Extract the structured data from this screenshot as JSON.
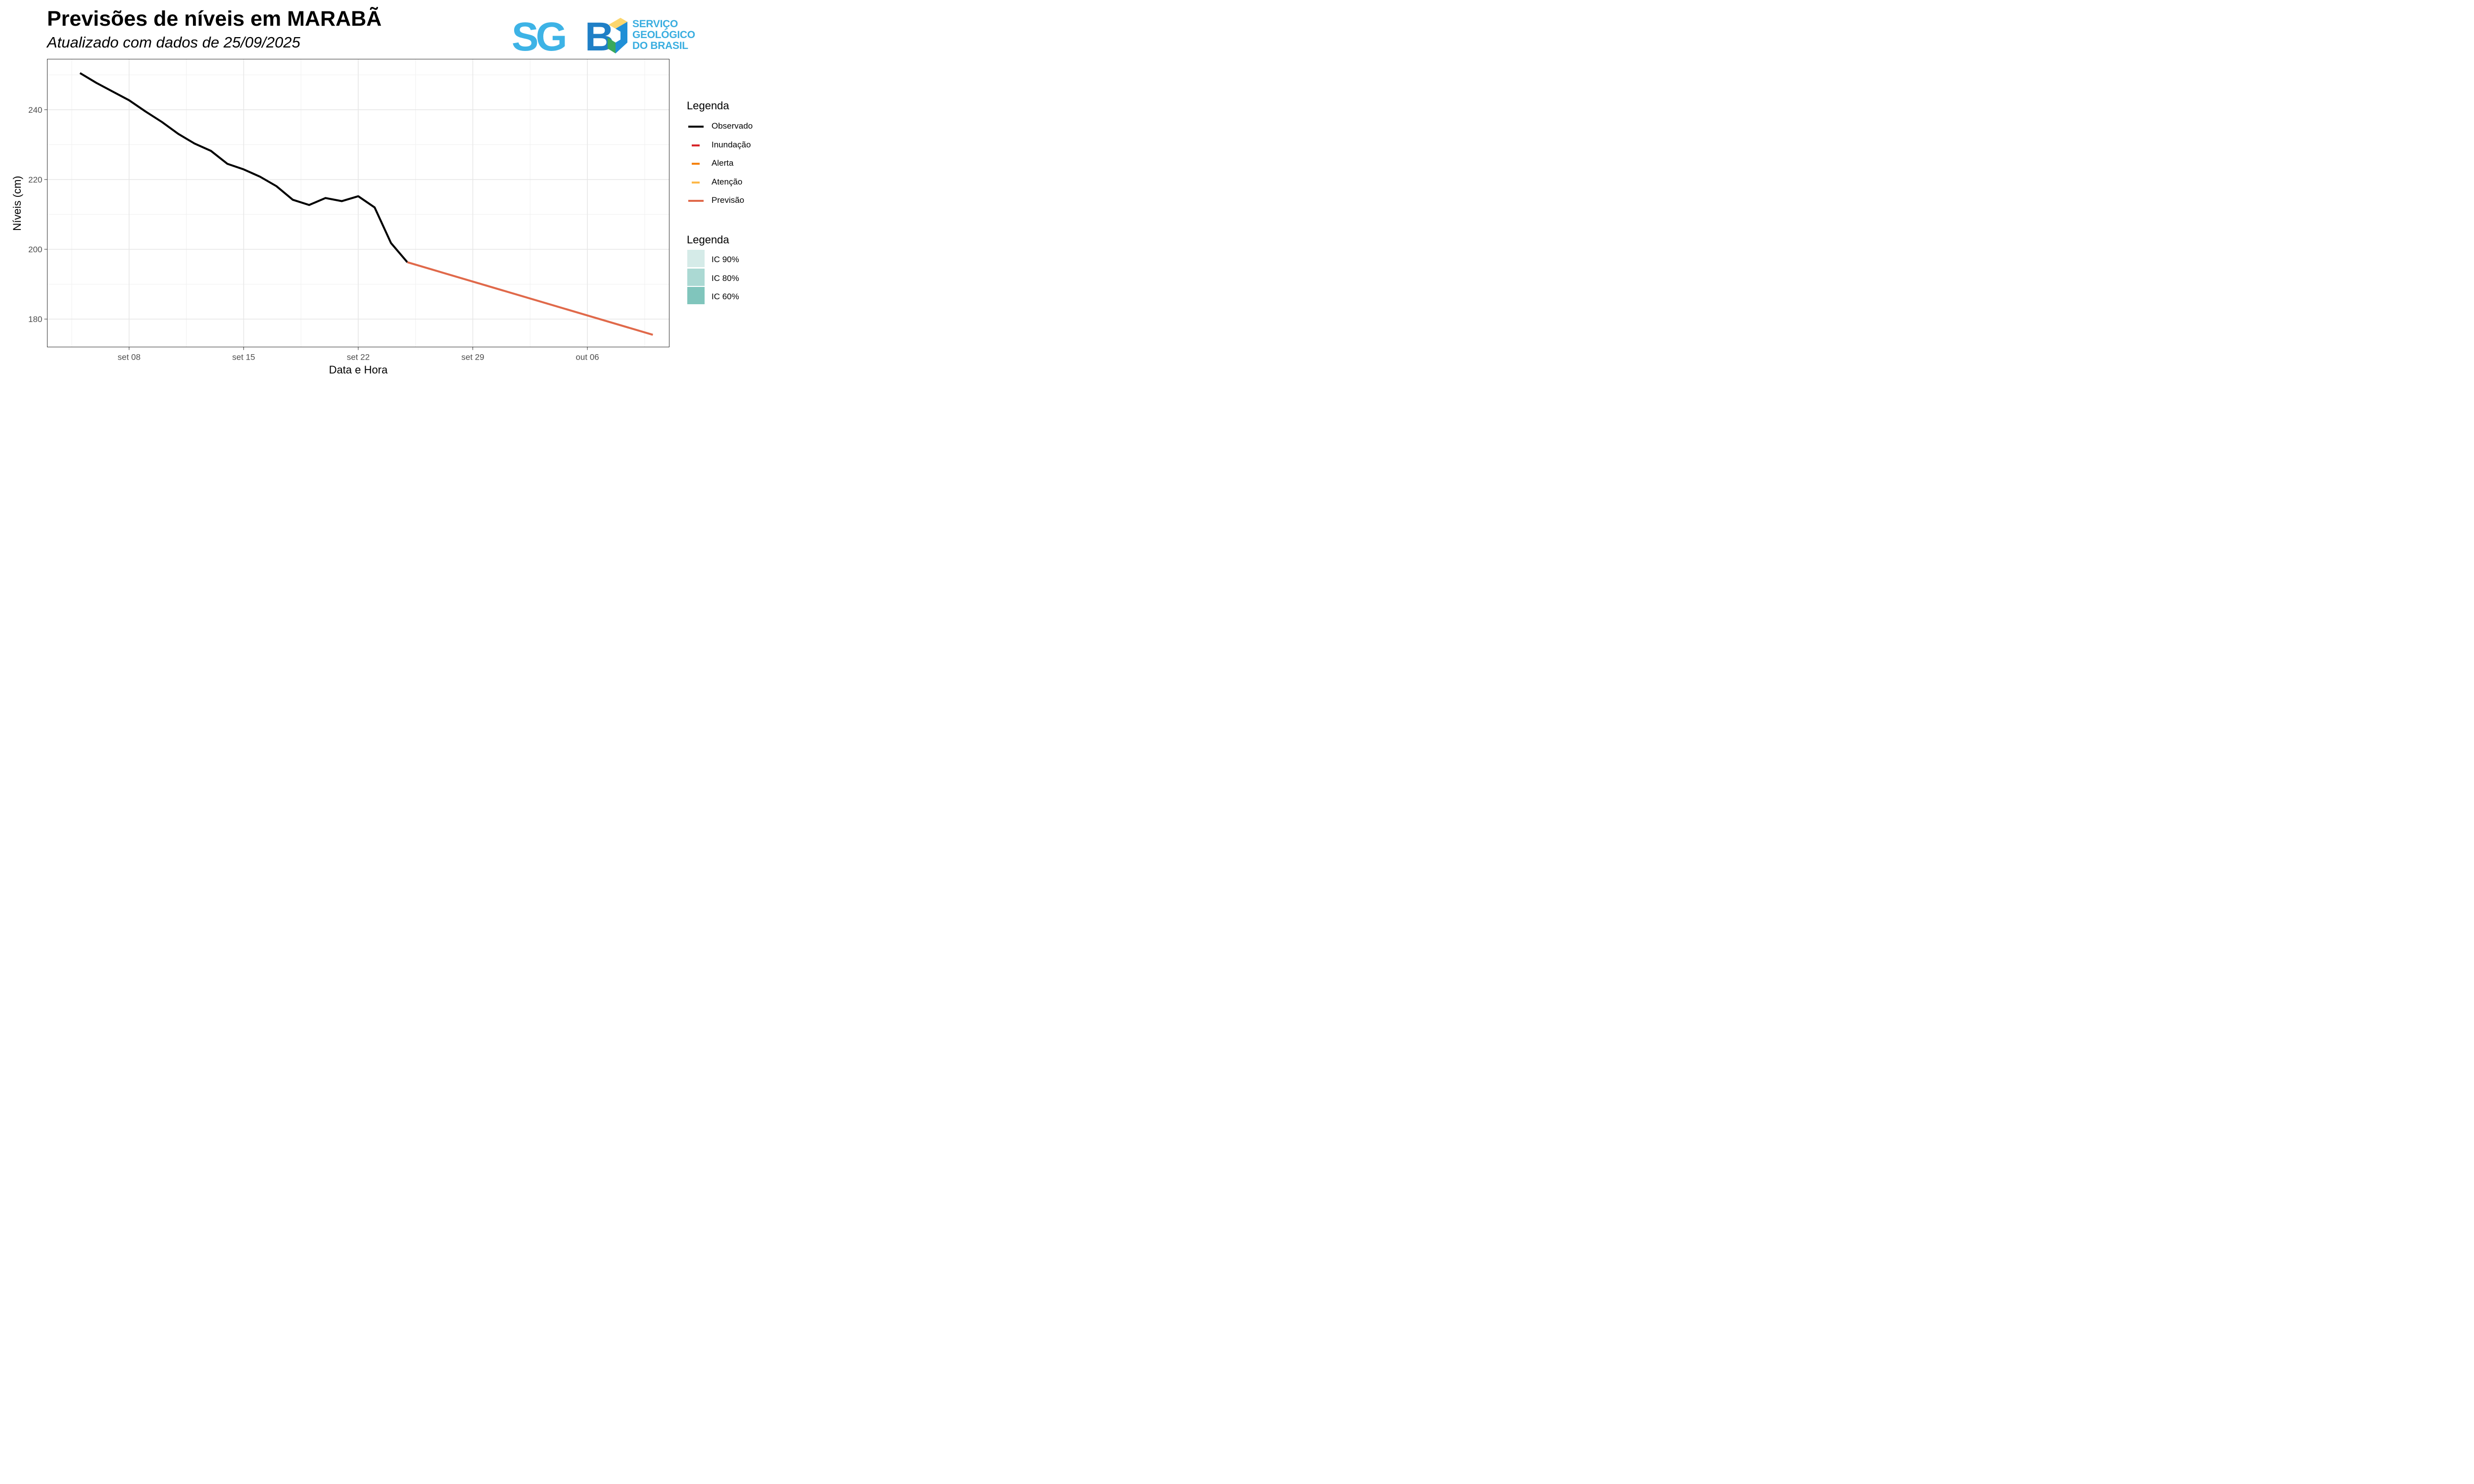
{
  "header": {
    "title": "Previsões de níveis em MARABÃ",
    "subtitle": "Atualizado com dados de 25/09/2025"
  },
  "logo": {
    "mark_text": "SGB",
    "name_lines": [
      "SERVIÇO",
      "GEOLÓGICO",
      "DO BRASIL"
    ],
    "colors": {
      "light_blue": "#3db3e6",
      "blue": "#1f7fc6",
      "green": "#3aa95b",
      "yellow": "#fbd66d"
    }
  },
  "chart_data": {
    "type": "line",
    "title": "",
    "xlabel": "Data e Hora",
    "ylabel": "Níveis (cm)",
    "x_ticks": [
      "set 08",
      "set 15",
      "set 22",
      "set 29",
      "out 06"
    ],
    "y_ticks": [
      180,
      200,
      220,
      240
    ],
    "xlim": [
      "2025-09-03",
      "2025-10-11"
    ],
    "ylim": [
      172,
      254.5
    ],
    "grid": true,
    "series": [
      {
        "name": "Observado",
        "color": "#000000",
        "x": [
          "2025-09-05",
          "2025-09-06",
          "2025-09-07",
          "2025-09-08",
          "2025-09-09",
          "2025-09-10",
          "2025-09-11",
          "2025-09-12",
          "2025-09-13",
          "2025-09-14",
          "2025-09-15",
          "2025-09-16",
          "2025-09-17",
          "2025-09-18",
          "2025-09-19",
          "2025-09-20",
          "2025-09-21",
          "2025-09-22",
          "2025-09-23",
          "2025-09-24",
          "2025-09-25"
        ],
        "y": [
          250.5,
          247.7,
          245.2,
          242.7,
          239.5,
          236.5,
          233.1,
          230.3,
          228.2,
          224.5,
          222.9,
          220.8,
          218.1,
          214.2,
          212.7,
          214.7,
          213.8,
          215.2,
          212.0,
          201.8,
          196.3
        ]
      },
      {
        "name": "Previsão",
        "color": "#e0694a",
        "x": [
          "2025-09-25",
          "2025-10-10"
        ],
        "y": [
          196.3,
          175.5
        ]
      }
    ],
    "legends": [
      {
        "title": "Legenda",
        "items": [
          {
            "label": "Observado",
            "color": "#000000",
            "kind": "line-long"
          },
          {
            "label": "Inundação",
            "color": "#d7262a",
            "kind": "line-short"
          },
          {
            "label": "Alerta",
            "color": "#f5820c",
            "kind": "line-short"
          },
          {
            "label": "Atenção",
            "color": "#fdb849",
            "kind": "line-short"
          },
          {
            "label": "Previsão",
            "color": "#e0694a",
            "kind": "line-long"
          }
        ]
      },
      {
        "title": "Legenda",
        "items": [
          {
            "label": "IC 90%",
            "color": "#d5ebe8",
            "kind": "box"
          },
          {
            "label": "IC 80%",
            "color": "#abd9d3",
            "kind": "box"
          },
          {
            "label": "IC 60%",
            "color": "#80c5bc",
            "kind": "box"
          }
        ]
      }
    ]
  }
}
